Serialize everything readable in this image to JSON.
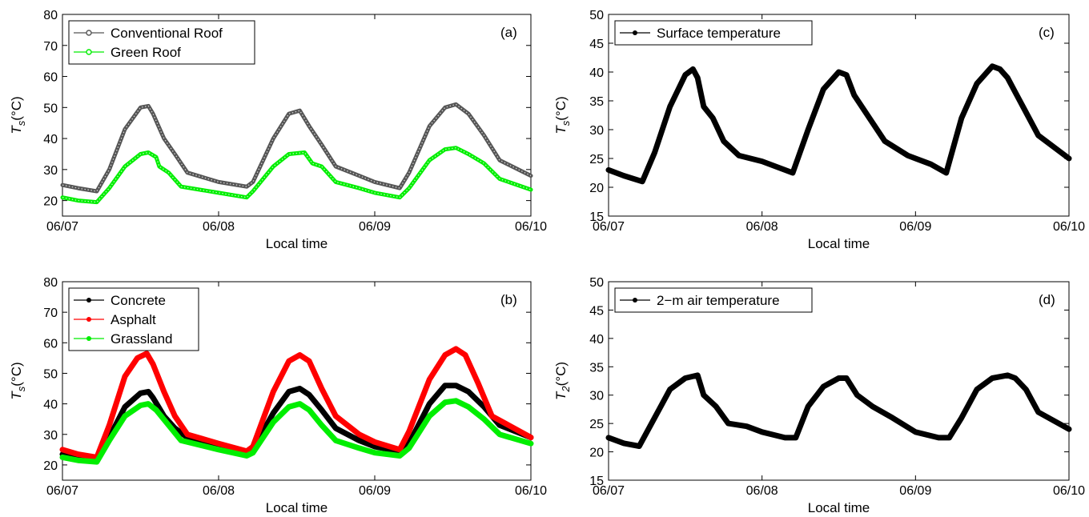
{
  "chart_data": [
    {
      "panel_label": "(a)",
      "type": "line",
      "xlabel": "Local time",
      "ylabel": {
        "main": "T",
        "sub": "s",
        "unit": "(°C)"
      },
      "ylim": [
        15,
        80
      ],
      "yticks": [
        20,
        30,
        40,
        50,
        60,
        70,
        80
      ],
      "xlim": [
        0,
        3
      ],
      "xticks": [
        0,
        1,
        2,
        3
      ],
      "xtick_labels": [
        "06/07",
        "06/08",
        "06/09",
        "06/10"
      ],
      "legend_position": "top-left",
      "series": [
        {
          "name": "Conventional Roof",
          "color": "#555555",
          "marker": "hollow",
          "x": [
            0,
            0.1,
            0.22,
            0.3,
            0.4,
            0.5,
            0.55,
            0.58,
            0.65,
            0.72,
            0.8,
            1.0,
            1.18,
            1.22,
            1.35,
            1.45,
            1.52,
            1.58,
            1.66,
            1.75,
            1.9,
            2.0,
            2.16,
            2.22,
            2.35,
            2.45,
            2.52,
            2.6,
            2.7,
            2.8,
            3.0
          ],
          "y": [
            25,
            24,
            23,
            30,
            43,
            50,
            50.5,
            48,
            40,
            35,
            29,
            26,
            24.5,
            26,
            40,
            48,
            49,
            44,
            38,
            31,
            28,
            26,
            24,
            29,
            44,
            50,
            51,
            48,
            41,
            33,
            28
          ]
        },
        {
          "name": "Green Roof",
          "color": "#00ee00",
          "marker": "hollow",
          "x": [
            0,
            0.1,
            0.22,
            0.3,
            0.4,
            0.5,
            0.55,
            0.6,
            0.62,
            0.68,
            0.76,
            1.0,
            1.18,
            1.22,
            1.35,
            1.45,
            1.55,
            1.6,
            1.66,
            1.75,
            1.9,
            2.0,
            2.16,
            2.22,
            2.35,
            2.45,
            2.52,
            2.6,
            2.7,
            2.8,
            3.0
          ],
          "y": [
            21,
            20,
            19.5,
            24,
            31,
            35,
            35.5,
            34,
            31,
            29,
            24.5,
            22.5,
            21,
            23,
            31,
            35,
            35.5,
            32,
            31,
            26,
            24,
            22.5,
            21,
            24,
            33,
            36.5,
            37,
            35,
            32,
            27,
            23.5
          ]
        }
      ]
    },
    {
      "panel_label": "(b)",
      "type": "line",
      "xlabel": "Local time",
      "ylabel": {
        "main": "T",
        "sub": "s",
        "unit": "(°C)"
      },
      "ylim": [
        15,
        80
      ],
      "yticks": [
        20,
        30,
        40,
        50,
        60,
        70,
        80
      ],
      "xlim": [
        0,
        3
      ],
      "xticks": [
        0,
        1,
        2,
        3
      ],
      "xtick_labels": [
        "06/07",
        "06/08",
        "06/09",
        "06/10"
      ],
      "legend_position": "top-left",
      "series": [
        {
          "name": "Concrete",
          "color": "#000000",
          "marker": "dot",
          "x": [
            0,
            0.1,
            0.22,
            0.3,
            0.4,
            0.5,
            0.55,
            0.58,
            0.65,
            0.72,
            0.8,
            1.0,
            1.18,
            1.22,
            1.35,
            1.45,
            1.52,
            1.58,
            1.66,
            1.75,
            1.9,
            2.0,
            2.16,
            2.22,
            2.35,
            2.45,
            2.52,
            2.6,
            2.7,
            2.8,
            3.0
          ],
          "y": [
            23.5,
            22.5,
            22,
            29,
            39,
            43.5,
            44,
            42,
            36,
            32,
            29,
            26,
            24,
            25,
            37,
            44,
            45,
            43,
            38,
            32,
            28,
            26,
            24.5,
            27,
            40,
            46,
            46,
            44,
            39,
            33,
            29
          ]
        },
        {
          "name": "Asphalt",
          "color": "#ff0000",
          "marker": "dot",
          "x": [
            0,
            0.1,
            0.22,
            0.3,
            0.4,
            0.48,
            0.54,
            0.58,
            0.65,
            0.72,
            0.8,
            1.0,
            1.18,
            1.22,
            1.35,
            1.45,
            1.52,
            1.58,
            1.66,
            1.75,
            1.9,
            2.0,
            2.16,
            2.22,
            2.35,
            2.45,
            2.52,
            2.58,
            2.66,
            2.75,
            3.0
          ],
          "y": [
            25,
            23.5,
            22.5,
            33,
            49,
            55,
            56.5,
            53,
            44,
            36,
            30,
            27,
            24.5,
            26,
            44,
            54,
            56,
            54,
            45,
            36,
            30,
            27.5,
            25,
            31,
            48,
            56,
            58,
            56,
            47,
            36,
            29
          ]
        },
        {
          "name": "Grassland",
          "color": "#00ee00",
          "marker": "dot",
          "x": [
            0,
            0.1,
            0.22,
            0.3,
            0.4,
            0.5,
            0.55,
            0.6,
            0.68,
            0.76,
            1.0,
            1.18,
            1.22,
            1.35,
            1.45,
            1.52,
            1.58,
            1.66,
            1.75,
            1.9,
            2.0,
            2.16,
            2.22,
            2.35,
            2.45,
            2.52,
            2.6,
            2.7,
            2.8,
            3.0
          ],
          "y": [
            22.5,
            21.5,
            21,
            28,
            36,
            39.5,
            40,
            38,
            33,
            28,
            25,
            23,
            24,
            34,
            39,
            40,
            38,
            33,
            28,
            25.5,
            24,
            23,
            25.5,
            36,
            40.5,
            41,
            39,
            35,
            30,
            27
          ]
        }
      ]
    },
    {
      "panel_label": "(c)",
      "type": "line",
      "xlabel": "Local time",
      "ylabel": {
        "main": "T",
        "sub": "s",
        "unit": "(°C)"
      },
      "ylim": [
        15,
        50
      ],
      "yticks": [
        15,
        20,
        25,
        30,
        35,
        40,
        45,
        50
      ],
      "xlim": [
        0,
        3
      ],
      "xticks": [
        0,
        1,
        2,
        3
      ],
      "xtick_labels": [
        "06/07",
        "06/08",
        "06/09",
        "06/10"
      ],
      "legend_position": "top-left",
      "series": [
        {
          "name": "Surface temperature",
          "color": "#000000",
          "marker": "dot",
          "x": [
            0,
            0.1,
            0.22,
            0.3,
            0.4,
            0.5,
            0.55,
            0.58,
            0.62,
            0.68,
            0.75,
            0.85,
            1.0,
            1.2,
            1.3,
            1.4,
            1.5,
            1.55,
            1.6,
            1.7,
            1.8,
            1.95,
            2.1,
            2.2,
            2.3,
            2.4,
            2.5,
            2.55,
            2.6,
            2.7,
            2.8,
            3.0
          ],
          "y": [
            23,
            22,
            21,
            26,
            34,
            39.5,
            40.5,
            39,
            34,
            32,
            28,
            25.5,
            24.5,
            22.5,
            30,
            37,
            40,
            39.5,
            36,
            32,
            28,
            25.5,
            24,
            22.5,
            32,
            38,
            41,
            40.5,
            39,
            34,
            29,
            25
          ]
        }
      ]
    },
    {
      "panel_label": "(d)",
      "type": "line",
      "xlabel": "Local time",
      "ylabel": {
        "main": "T",
        "sub": "2",
        "unit": "(°C)"
      },
      "ylim": [
        15,
        50
      ],
      "yticks": [
        15,
        20,
        25,
        30,
        35,
        40,
        45,
        50
      ],
      "xlim": [
        0,
        3
      ],
      "xticks": [
        0,
        1,
        2,
        3
      ],
      "xtick_labels": [
        "06/07",
        "06/08",
        "06/09",
        "06/10"
      ],
      "legend_position": "top-left",
      "series": [
        {
          "name": "2−m air temperature",
          "color": "#000000",
          "marker": "dot",
          "x": [
            0,
            0.1,
            0.2,
            0.3,
            0.4,
            0.5,
            0.58,
            0.62,
            0.7,
            0.78,
            0.9,
            1.0,
            1.15,
            1.22,
            1.3,
            1.4,
            1.5,
            1.55,
            1.62,
            1.72,
            1.85,
            2.0,
            2.15,
            2.22,
            2.3,
            2.4,
            2.5,
            2.6,
            2.65,
            2.72,
            2.8,
            3.0
          ],
          "y": [
            22.5,
            21.5,
            21,
            26,
            31,
            33,
            33.5,
            30,
            28,
            25,
            24.5,
            23.5,
            22.5,
            22.5,
            28,
            31.5,
            33,
            33,
            30,
            28,
            26,
            23.5,
            22.5,
            22.5,
            26,
            31,
            33,
            33.5,
            33,
            31,
            27,
            24
          ]
        }
      ]
    }
  ]
}
